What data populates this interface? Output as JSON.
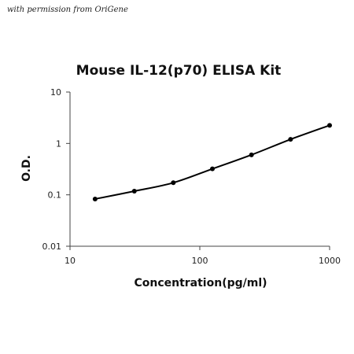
{
  "permission_note": "with permission from OriGene",
  "chart_data": {
    "type": "scatter",
    "title": "Mouse IL-12(p70) ELISA Kit",
    "xlabel": "Concentration(pg/ml)",
    "ylabel": "O.D.",
    "x_scale": "log",
    "y_scale": "log",
    "xlim": [
      10,
      1000
    ],
    "ylim": [
      0.01,
      10
    ],
    "x_ticks": [
      10,
      100,
      1000
    ],
    "x_tick_labels": [
      "10",
      "100",
      "1000"
    ],
    "y_ticks": [
      0.01,
      0.1,
      1,
      10
    ],
    "y_tick_labels": [
      "0.01",
      "0.1",
      "1",
      "10"
    ],
    "grid": false,
    "legend": false,
    "series": [
      {
        "x": [
          15.6,
          31.3,
          62.5,
          125,
          250,
          500,
          1000
        ],
        "y": [
          0.083,
          0.118,
          0.172,
          0.32,
          0.6,
          1.2,
          2.25
        ],
        "fit_curve": true,
        "color": "#000000"
      }
    ]
  }
}
